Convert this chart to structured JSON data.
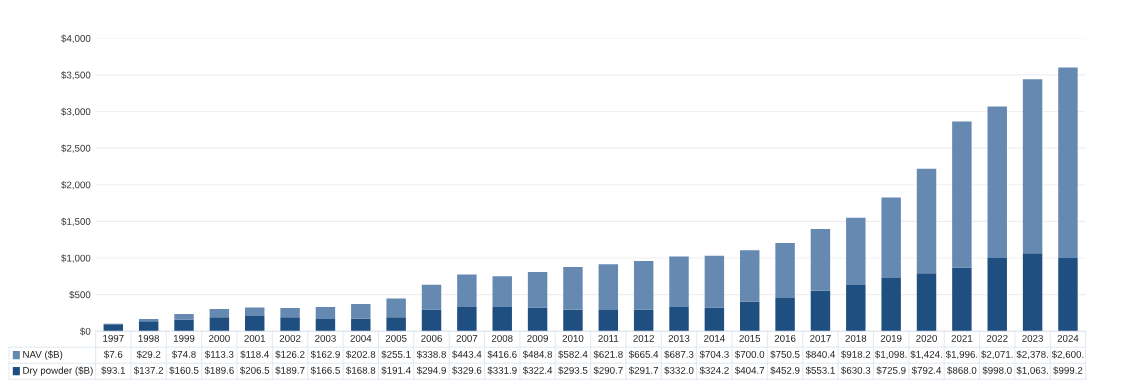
{
  "chart_data": {
    "type": "bar",
    "stacked": true,
    "grid": "y",
    "legend": "bottom left",
    "categories": [
      "1997",
      "1998",
      "1999",
      "2000",
      "2001",
      "2002",
      "2003",
      "2004",
      "2005",
      "2006",
      "2007",
      "2008",
      "2009",
      "2010",
      "2011",
      "2012",
      "2013",
      "2014",
      "2015",
      "2016",
      "2017",
      "2018",
      "2019",
      "2020",
      "2021",
      "2022",
      "2023",
      "2024"
    ],
    "series": [
      {
        "name": "Dry powder ($B)",
        "color": "#1f4e80",
        "values": [
          93.1,
          137.2,
          160.5,
          189.6,
          206.5,
          189.7,
          166.5,
          168.8,
          191.4,
          294.9,
          329.6,
          331.9,
          322.4,
          293.5,
          290.7,
          291.7,
          332.0,
          324.2,
          404.7,
          452.9,
          553.1,
          630.3,
          725.9,
          792.4,
          868.0,
          998.0,
          1063,
          999.2
        ],
        "value_labels": [
          "$93.1",
          "$137.2",
          "$160.5",
          "$189.6",
          "$206.5",
          "$189.7",
          "$166.5",
          "$168.8",
          "$191.4",
          "$294.9",
          "$329.6",
          "$331.9",
          "$322.4",
          "$293.5",
          "$290.7",
          "$291.7",
          "$332.0",
          "$324.2",
          "$404.7",
          "$452.9",
          "$553.1",
          "$630.3",
          "$725.9",
          "$792.4",
          "$868.0",
          "$998.0",
          "$1,063.",
          "$999.2"
        ]
      },
      {
        "name": "NAV ($B)",
        "color": "#6589b0",
        "values": [
          7.6,
          29.2,
          74.8,
          113.3,
          118.4,
          126.2,
          162.9,
          202.8,
          255.1,
          338.8,
          443.4,
          416.6,
          484.8,
          582.4,
          621.8,
          665.4,
          687.3,
          704.3,
          700.0,
          750.5,
          840.4,
          918.2,
          1098,
          1424,
          1996,
          2071,
          2378,
          2600
        ],
        "value_labels": [
          "$7.6",
          "$29.2",
          "$74.8",
          "$113.3",
          "$118.4",
          "$126.2",
          "$162.9",
          "$202.8",
          "$255.1",
          "$338.8",
          "$443.4",
          "$416.6",
          "$484.8",
          "$582.4",
          "$621.8",
          "$665.4",
          "$687.3",
          "$704.3",
          "$700.0",
          "$750.5",
          "$840.4",
          "$918.2",
          "$1,098.",
          "$1,424.",
          "$1,996.",
          "$2,071.",
          "$2,378.",
          "$2,600."
        ]
      }
    ],
    "ylim": [
      0,
      4000
    ],
    "yticks": [
      {
        "value": 0,
        "label": "$0"
      },
      {
        "value": 500,
        "label": "$500"
      },
      {
        "value": 1000,
        "label": "$1,000"
      },
      {
        "value": 1500,
        "label": "$1,500"
      },
      {
        "value": 2000,
        "label": "$2,000"
      },
      {
        "value": 2500,
        "label": "$2,500"
      },
      {
        "value": 3000,
        "label": "$3,000"
      },
      {
        "value": 3500,
        "label": "$3,500"
      },
      {
        "value": 4000,
        "label": "$4,000"
      }
    ]
  }
}
